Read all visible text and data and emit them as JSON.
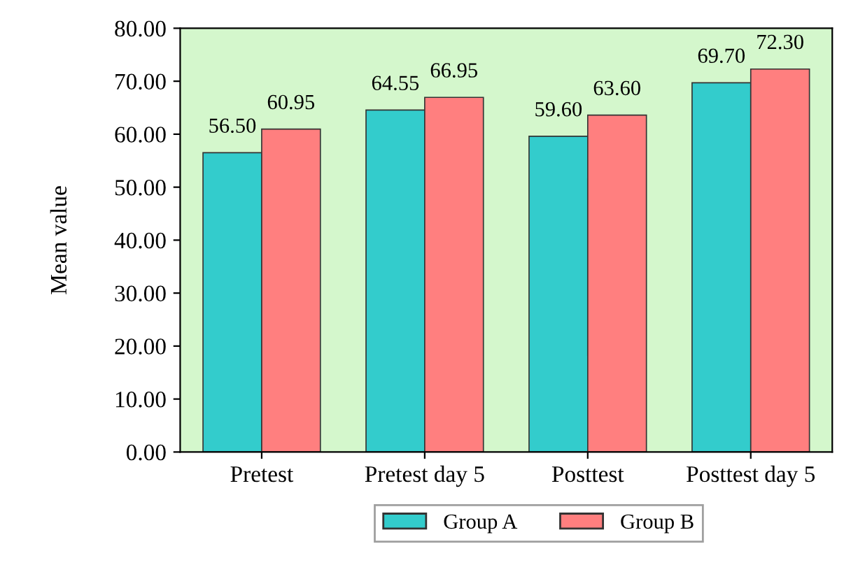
{
  "chart_data": {
    "type": "bar",
    "ylabel": "Mean value",
    "categories": [
      "Pretest",
      "Pretest day 5",
      "Posttest",
      "Posttest day 5"
    ],
    "series": [
      {
        "name": "Group A",
        "color": "#33cccc",
        "values": [
          56.5,
          64.55,
          59.6,
          69.7
        ],
        "value_labels": [
          "56.50",
          "64.55",
          "59.60",
          "69.70"
        ]
      },
      {
        "name": "Group B",
        "color": "#ff7f7f",
        "values": [
          60.95,
          66.95,
          63.6,
          72.3
        ],
        "value_labels": [
          "60.95",
          "66.95",
          "63.60",
          "72.30"
        ]
      }
    ],
    "ylim": [
      0,
      80
    ],
    "yticks": [
      {
        "value": 0,
        "label": "0.00"
      },
      {
        "value": 10,
        "label": "10.00"
      },
      {
        "value": 20,
        "label": "20.00"
      },
      {
        "value": 30,
        "label": "30.00"
      },
      {
        "value": 40,
        "label": "40.00"
      },
      {
        "value": 50,
        "label": "50.00"
      },
      {
        "value": 60,
        "label": "60.00"
      },
      {
        "value": 70,
        "label": "70.00"
      },
      {
        "value": 80,
        "label": "80.00"
      }
    ],
    "grid": false,
    "legend": "bottom"
  }
}
